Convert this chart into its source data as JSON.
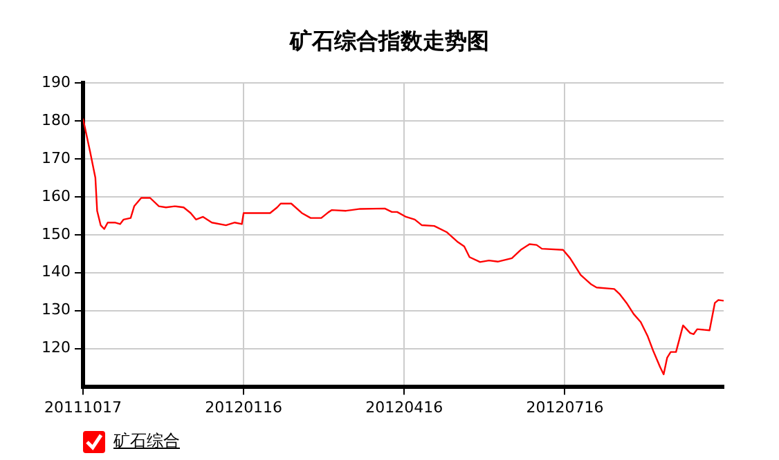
{
  "chart_data": {
    "type": "line",
    "title": "矿石综合指数走势图",
    "x": [
      "2011-10-17",
      "2011-10-21",
      "2011-10-24",
      "2011-10-25",
      "2011-10-27",
      "2011-10-29",
      "2011-10-31",
      "2011-11-04",
      "2011-11-07",
      "2011-11-09",
      "2011-11-13",
      "2011-11-15",
      "2011-11-19",
      "2011-11-24",
      "2011-11-29",
      "2011-12-03",
      "2011-12-08",
      "2011-12-13",
      "2011-12-17",
      "2011-12-20",
      "2011-12-24",
      "2011-12-29",
      "2012-01-06",
      "2012-01-11",
      "2012-01-15",
      "2012-01-16",
      "2012-01-31",
      "2012-02-04",
      "2012-02-06",
      "2012-02-12",
      "2012-02-18",
      "2012-02-23",
      "2012-02-29",
      "2012-03-04",
      "2012-03-06",
      "2012-03-14",
      "2012-03-22",
      "2012-04-05",
      "2012-04-09",
      "2012-04-12",
      "2012-04-17",
      "2012-04-22",
      "2012-04-26",
      "2012-05-03",
      "2012-05-10",
      "2012-05-16",
      "2012-05-20",
      "2012-05-23",
      "2012-05-29",
      "2012-06-03",
      "2012-06-08",
      "2012-06-16",
      "2012-06-21",
      "2012-06-26",
      "2012-06-30",
      "2012-07-03",
      "2012-07-15",
      "2012-07-19",
      "2012-07-25",
      "2012-07-31",
      "2012-08-03",
      "2012-08-13",
      "2012-08-16",
      "2012-08-20",
      "2012-08-24",
      "2012-08-28",
      "2012-09-01",
      "2012-09-04",
      "2012-09-08",
      "2012-09-10",
      "2012-09-12",
      "2012-09-14",
      "2012-09-17",
      "2012-09-21",
      "2012-09-25",
      "2012-09-27",
      "2012-09-29",
      "2012-10-06",
      "2012-10-09",
      "2012-10-11",
      "2012-10-14"
    ],
    "series": [
      {
        "name": "矿石综合",
        "color": "#ff0000",
        "values": [
          180.6,
          171.9,
          165,
          156.3,
          152.5,
          151.5,
          153.2,
          153.2,
          152.8,
          154,
          154.4,
          157.5,
          159.7,
          159.7,
          157.5,
          157.2,
          157.5,
          157.2,
          155.7,
          154,
          154.7,
          153.2,
          152.5,
          153.2,
          152.8,
          155.7,
          155.7,
          157.2,
          158.2,
          158.2,
          155.7,
          154.4,
          154.4,
          155.9,
          156.5,
          156.3,
          156.8,
          156.9,
          156,
          156,
          154.7,
          154,
          152.5,
          152.3,
          150.7,
          148.2,
          146.9,
          144.1,
          142.8,
          143.2,
          142.9,
          143.8,
          146,
          147.5,
          147.3,
          146.3,
          146,
          143.8,
          139.4,
          136.9,
          136.1,
          135.7,
          134.4,
          132,
          129.1,
          127,
          123.2,
          119.5,
          115.1,
          113.2,
          117.6,
          119.1,
          119.1,
          126.1,
          124.1,
          123.8,
          125.1,
          124.8,
          132,
          132.8,
          132.6
        ]
      }
    ],
    "xlim": [
      "2011-10-17",
      "2012-10-14"
    ],
    "xticks": [
      {
        "value": "2011-10-17",
        "label": "20111017"
      },
      {
        "value": "2012-01-16",
        "label": "20120116"
      },
      {
        "value": "2012-04-16",
        "label": "20120416"
      },
      {
        "value": "2012-07-16",
        "label": "20120716"
      }
    ],
    "ylim": [
      110,
      190
    ],
    "yticks": [
      120,
      130,
      140,
      150,
      160,
      170,
      180,
      190
    ],
    "grid": true,
    "legend": "bottom left",
    "marker": "none",
    "line_style": "solid"
  }
}
